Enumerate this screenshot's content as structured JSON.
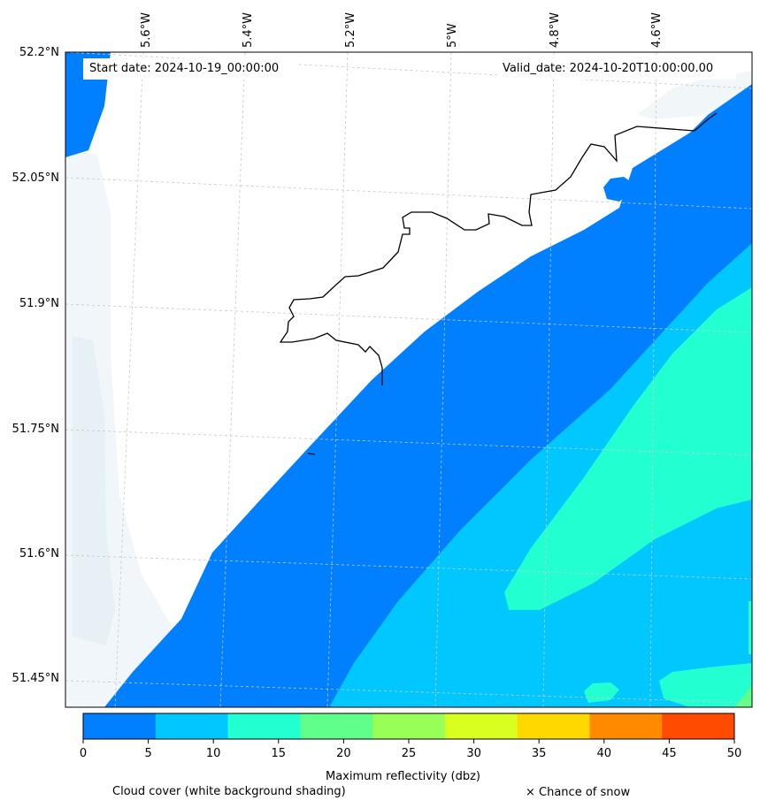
{
  "map": {
    "start_label": "Start date: 2024-10-19_00:00:00",
    "valid_label": "Valid_date: 2024-10-20T10:00:00.00",
    "lon_labels": [
      "5.6°W",
      "5.4°W",
      "5.2°W",
      "5°W",
      "4.8°W",
      "4.6°W"
    ],
    "lat_labels": [
      "52.2°N",
      "52.05°N",
      "51.9°N",
      "51.75°N",
      "51.6°N",
      "51.45°N"
    ]
  },
  "colorbar": {
    "title": "Maximum reflectivity (dbz)",
    "ticks": [
      "0",
      "5",
      "10",
      "15",
      "20",
      "25",
      "30",
      "35",
      "40",
      "45",
      "50"
    ],
    "colors": [
      "#0080ff",
      "#00c8ff",
      "#22ffd0",
      "#60ff8a",
      "#98ff58",
      "#d8ff20",
      "#ffd800",
      "#ff8a00",
      "#ff4a00"
    ]
  },
  "footer": {
    "cloud_note": "Cloud cover (white background shading)",
    "snow_note": "× Chance of snow"
  }
}
